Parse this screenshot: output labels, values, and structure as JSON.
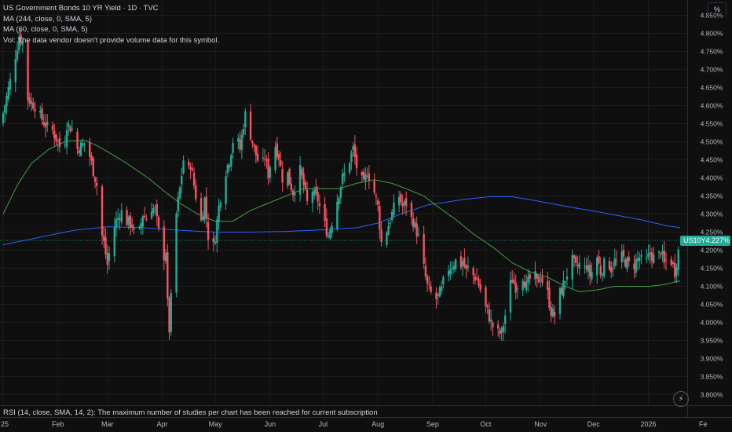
{
  "legend": {
    "title": "US Government Bonds 10 YR Yield · 1D · TVC",
    "ma1": "MA (244, close, 0, SMA, 5)",
    "ma2": "MA (60, close, 0, SMA, 5)",
    "vol": "Vol: The data vendor doesn't provide volume data for this symbol."
  },
  "rsi_note": "RSI (14, close, SMA, 14, 2): The maximum number of studies per chart has been reached for current subscription",
  "toolbar": {
    "percent_label": "%"
  },
  "icons": {
    "bolt": "lightning-icon"
  },
  "price_tag": {
    "symbol": "US10Y",
    "value": "4.227%"
  },
  "colors": {
    "up": "#22ab94",
    "down": "#f7525f",
    "ma244": "#2962ff",
    "ma60": "#43a047",
    "background": "#0f0f0f",
    "grid": "#1c1c1c"
  },
  "chart_data": {
    "type": "candlestick",
    "title": "US Government Bonds 10 YR Yield",
    "ylim": [
      3.775,
      4.875
    ],
    "y_ticks": [
      "4.850%",
      "4.800%",
      "4.750%",
      "4.700%",
      "4.650%",
      "4.600%",
      "4.550%",
      "4.500%",
      "4.450%",
      "4.400%",
      "4.350%",
      "4.300%",
      "4.250%",
      "4.200%",
      "4.150%",
      "4.100%",
      "4.050%",
      "4.000%",
      "3.950%",
      "3.900%",
      "3.850%",
      "3.800%"
    ],
    "x_labels": [
      {
        "label": "25",
        "day": 0
      },
      {
        "label": "Feb",
        "day": 31
      },
      {
        "label": "Mar",
        "day": 59
      },
      {
        "label": "Apr",
        "day": 90
      },
      {
        "label": "May",
        "day": 120
      },
      {
        "label": "Jun",
        "day": 151
      },
      {
        "label": "Jul",
        "day": 181
      },
      {
        "label": "Aug",
        "day": 212
      },
      {
        "label": "Sep",
        "day": 243
      },
      {
        "label": "Oct",
        "day": 273
      },
      {
        "label": "Nov",
        "day": 304
      },
      {
        "label": "Dec",
        "day": 334
      },
      {
        "label": "2026",
        "day": 365
      },
      {
        "label": "Fe",
        "day": 396
      }
    ],
    "last_day": 383,
    "close_keypoints": [
      [
        0,
        4.58
      ],
      [
        5,
        4.69
      ],
      [
        9,
        4.79
      ],
      [
        12,
        4.77
      ],
      [
        14,
        4.62
      ],
      [
        18,
        4.6
      ],
      [
        21,
        4.57
      ],
      [
        25,
        4.54
      ],
      [
        28,
        4.53
      ],
      [
        31,
        4.5
      ],
      [
        34,
        4.46
      ],
      [
        36,
        4.55
      ],
      [
        40,
        4.53
      ],
      [
        42,
        4.48
      ],
      [
        47,
        4.5
      ],
      [
        50,
        4.44
      ],
      [
        53,
        4.38
      ],
      [
        55,
        4.26
      ],
      [
        57,
        4.22
      ],
      [
        59,
        4.16
      ],
      [
        62,
        4.25
      ],
      [
        64,
        4.28
      ],
      [
        66,
        4.3
      ],
      [
        68,
        4.31
      ],
      [
        70,
        4.28
      ],
      [
        73,
        4.27
      ],
      [
        75,
        4.23
      ],
      [
        77,
        4.25
      ],
      [
        79,
        4.3
      ],
      [
        82,
        4.28
      ],
      [
        84,
        4.32
      ],
      [
        86,
        4.31
      ],
      [
        88,
        4.25
      ],
      [
        90,
        4.17
      ],
      [
        92,
        4.2
      ],
      [
        93,
        4.05
      ],
      [
        94,
        3.98
      ],
      [
        96,
        4.15
      ],
      [
        98,
        4.3
      ],
      [
        100,
        4.37
      ],
      [
        102,
        4.45
      ],
      [
        104,
        4.4
      ],
      [
        106,
        4.44
      ],
      [
        108,
        4.38
      ],
      [
        110,
        4.32
      ],
      [
        112,
        4.28
      ],
      [
        114,
        4.34
      ],
      [
        116,
        4.24
      ],
      [
        118,
        4.18
      ],
      [
        120,
        4.24
      ],
      [
        122,
        4.32
      ],
      [
        124,
        4.38
      ],
      [
        126,
        4.42
      ],
      [
        128,
        4.45
      ],
      [
        131,
        4.53
      ],
      [
        134,
        4.48
      ],
      [
        136,
        4.55
      ],
      [
        138,
        4.6
      ],
      [
        140,
        4.52
      ],
      [
        142,
        4.48
      ],
      [
        144,
        4.45
      ],
      [
        146,
        4.42
      ],
      [
        148,
        4.46
      ],
      [
        150,
        4.41
      ],
      [
        152,
        4.46
      ],
      [
        154,
        4.49
      ],
      [
        156,
        4.46
      ],
      [
        158,
        4.4
      ],
      [
        160,
        4.43
      ],
      [
        162,
        4.39
      ],
      [
        164,
        4.36
      ],
      [
        166,
        4.39
      ],
      [
        168,
        4.42
      ],
      [
        170,
        4.38
      ],
      [
        172,
        4.33
      ],
      [
        174,
        4.38
      ],
      [
        176,
        4.35
      ],
      [
        178,
        4.34
      ],
      [
        180,
        4.3
      ],
      [
        182,
        4.27
      ],
      [
        184,
        4.24
      ],
      [
        186,
        4.28
      ],
      [
        188,
        4.32
      ],
      [
        190,
        4.36
      ],
      [
        192,
        4.4
      ],
      [
        194,
        4.42
      ],
      [
        196,
        4.45
      ],
      [
        198,
        4.48
      ],
      [
        200,
        4.43
      ],
      [
        202,
        4.4
      ],
      [
        204,
        4.38
      ],
      [
        206,
        4.42
      ],
      [
        208,
        4.39
      ],
      [
        210,
        4.36
      ],
      [
        212,
        4.32
      ],
      [
        214,
        4.22
      ],
      [
        216,
        4.24
      ],
      [
        218,
        4.27
      ],
      [
        220,
        4.3
      ],
      [
        222,
        4.33
      ],
      [
        224,
        4.35
      ],
      [
        226,
        4.32
      ],
      [
        228,
        4.33
      ],
      [
        230,
        4.29
      ],
      [
        232,
        4.28
      ],
      [
        234,
        4.25
      ],
      [
        236,
        4.22
      ],
      [
        238,
        4.15
      ],
      [
        240,
        4.1
      ],
      [
        242,
        4.08
      ],
      [
        244,
        4.06
      ],
      [
        246,
        4.07
      ],
      [
        248,
        4.09
      ],
      [
        250,
        4.13
      ],
      [
        252,
        4.15
      ],
      [
        254,
        4.16
      ],
      [
        256,
        4.17
      ],
      [
        258,
        4.15
      ],
      [
        260,
        4.17
      ],
      [
        262,
        4.14
      ],
      [
        264,
        4.16
      ],
      [
        266,
        4.13
      ],
      [
        268,
        4.12
      ],
      [
        270,
        4.09
      ],
      [
        272,
        4.05
      ],
      [
        274,
        4.03
      ],
      [
        276,
        4.0
      ],
      [
        278,
        3.98
      ],
      [
        280,
        3.97
      ],
      [
        282,
        3.97
      ],
      [
        284,
        4.02
      ],
      [
        286,
        4.09
      ],
      [
        288,
        4.12
      ],
      [
        290,
        4.1
      ],
      [
        292,
        4.11
      ],
      [
        294,
        4.13
      ],
      [
        296,
        4.1
      ],
      [
        298,
        4.12
      ],
      [
        300,
        4.14
      ],
      [
        302,
        4.11
      ],
      [
        304,
        4.13
      ],
      [
        306,
        4.1
      ],
      [
        308,
        4.08
      ],
      [
        310,
        4.03
      ],
      [
        312,
        4.02
      ],
      [
        314,
        4.07
      ],
      [
        316,
        4.09
      ],
      [
        318,
        4.12
      ],
      [
        320,
        4.15
      ],
      [
        322,
        4.17
      ],
      [
        324,
        4.15
      ],
      [
        326,
        4.16
      ],
      [
        328,
        4.14
      ],
      [
        330,
        4.16
      ],
      [
        332,
        4.13
      ],
      [
        334,
        4.15
      ],
      [
        336,
        4.18
      ],
      [
        338,
        4.14
      ],
      [
        340,
        4.16
      ],
      [
        342,
        4.17
      ],
      [
        344,
        4.15
      ],
      [
        346,
        4.17
      ],
      [
        348,
        4.16
      ],
      [
        350,
        4.18
      ],
      [
        352,
        4.17
      ],
      [
        354,
        4.16
      ],
      [
        356,
        4.15
      ],
      [
        358,
        4.17
      ],
      [
        360,
        4.18
      ],
      [
        362,
        4.16
      ],
      [
        364,
        4.17
      ],
      [
        366,
        4.19
      ],
      [
        368,
        4.18
      ],
      [
        370,
        4.17
      ],
      [
        372,
        4.2
      ],
      [
        374,
        4.16
      ],
      [
        376,
        4.18
      ],
      [
        378,
        4.17
      ],
      [
        380,
        4.14
      ],
      [
        383,
        4.227
      ]
    ],
    "ma244_keypoints": [
      [
        0,
        4.215
      ],
      [
        20,
        4.235
      ],
      [
        40,
        4.255
      ],
      [
        60,
        4.265
      ],
      [
        80,
        4.262
      ],
      [
        100,
        4.255
      ],
      [
        120,
        4.25
      ],
      [
        140,
        4.25
      ],
      [
        160,
        4.252
      ],
      [
        180,
        4.256
      ],
      [
        200,
        4.262
      ],
      [
        212,
        4.275
      ],
      [
        225,
        4.3
      ],
      [
        240,
        4.325
      ],
      [
        260,
        4.34
      ],
      [
        275,
        4.348
      ],
      [
        288,
        4.348
      ],
      [
        300,
        4.338
      ],
      [
        320,
        4.32
      ],
      [
        340,
        4.303
      ],
      [
        360,
        4.285
      ],
      [
        375,
        4.268
      ],
      [
        383,
        4.262
      ]
    ],
    "ma60_keypoints": [
      [
        0,
        4.3
      ],
      [
        8,
        4.38
      ],
      [
        16,
        4.44
      ],
      [
        26,
        4.48
      ],
      [
        36,
        4.502
      ],
      [
        46,
        4.504
      ],
      [
        52,
        4.492
      ],
      [
        60,
        4.47
      ],
      [
        70,
        4.44
      ],
      [
        82,
        4.4
      ],
      [
        92,
        4.36
      ],
      [
        100,
        4.33
      ],
      [
        110,
        4.3
      ],
      [
        120,
        4.28
      ],
      [
        130,
        4.28
      ],
      [
        140,
        4.31
      ],
      [
        150,
        4.33
      ],
      [
        160,
        4.35
      ],
      [
        170,
        4.37
      ],
      [
        180,
        4.37
      ],
      [
        190,
        4.37
      ],
      [
        200,
        4.385
      ],
      [
        210,
        4.395
      ],
      [
        220,
        4.385
      ],
      [
        228,
        4.37
      ],
      [
        238,
        4.35
      ],
      [
        246,
        4.32
      ],
      [
        256,
        4.285
      ],
      [
        266,
        4.245
      ],
      [
        278,
        4.205
      ],
      [
        288,
        4.165
      ],
      [
        298,
        4.14
      ],
      [
        308,
        4.125
      ],
      [
        318,
        4.1
      ],
      [
        326,
        4.085
      ],
      [
        336,
        4.09
      ],
      [
        346,
        4.1
      ],
      [
        356,
        4.1
      ],
      [
        366,
        4.1
      ],
      [
        374,
        4.105
      ],
      [
        383,
        4.115
      ]
    ]
  }
}
